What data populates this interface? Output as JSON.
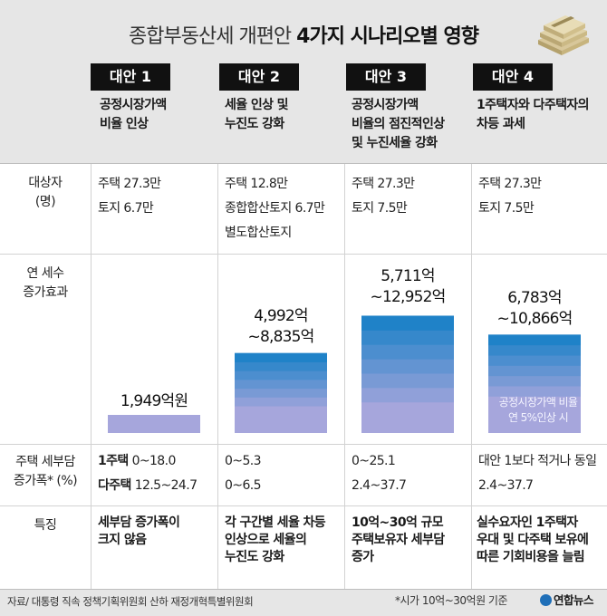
{
  "title_prefix": "종합부동산세 개편안 ",
  "title_bold": "4가지 시나리오별 영향",
  "scenarios": [
    {
      "name": "대안 1",
      "desc": [
        "공정시장가액",
        "비율 인상"
      ]
    },
    {
      "name": "대안 2",
      "desc": [
        "세율 인상 및",
        "누진도 강화"
      ]
    },
    {
      "name": "대안 3",
      "desc": [
        "공정시장가액",
        "비율의 점진적인상",
        "및 누진세율 강화"
      ]
    },
    {
      "name": "대안 4",
      "desc": [
        "1주택자와 다주택자의",
        "차등 과세"
      ]
    }
  ],
  "row_labels": {
    "targets": [
      "대상자",
      "(명)"
    ],
    "revenue": [
      "연 세수",
      "증가효과"
    ],
    "burden": [
      "주택 세부담",
      "증가폭* (%)"
    ],
    "feature": [
      "특징"
    ]
  },
  "targets": [
    [
      "주택 27.3만",
      "토지 6.7만"
    ],
    [
      "주택 12.8만",
      "종합합산토지 6.7만",
      "별도합산토지"
    ],
    [
      "주택 27.3만",
      "토지 7.5만"
    ],
    [
      "주택 27.3만",
      "토지 7.5만"
    ]
  ],
  "burden": [
    {
      "lines": [
        {
          "label": "1주택",
          "value": "0~18.0"
        },
        {
          "label": "다주택",
          "value": "12.5~24.7"
        }
      ]
    },
    {
      "lines": [
        {
          "label": "",
          "value": "0~5.3"
        },
        {
          "label": "",
          "value": "0~6.5"
        }
      ]
    },
    {
      "lines": [
        {
          "label": "",
          "value": "0~25.1"
        },
        {
          "label": "",
          "value": "2.4~37.7"
        }
      ]
    },
    {
      "lines": [
        {
          "label": "",
          "value": "대안 1보다 적거나 동일"
        },
        {
          "label": "",
          "value": "2.4~37.7"
        }
      ]
    }
  ],
  "features": [
    [
      "세부담 증가폭이",
      "크지 않음"
    ],
    [
      "각 구간별 세율 차등",
      "인상으로 세율의",
      "누진도 강화"
    ],
    [
      "10억~30억 규모",
      "주택보유자 세부담",
      "증가"
    ],
    [
      "실수요자인 1주택자",
      "우대 및 다주택 보유에",
      "따른 기회비용을 늘림"
    ]
  ],
  "chart_data": {
    "type": "bar",
    "title": "",
    "ylabel": "연 세수 증가효과",
    "unit": "억원",
    "categories": [
      "대안 1",
      "대안 2",
      "대안 3",
      "대안 4"
    ],
    "series": [
      {
        "values_min": [
          1949,
          4992,
          5711,
          6783
        ],
        "values_max": [
          1949,
          8835,
          12952,
          10866
        ]
      }
    ],
    "ylim": [
      0,
      13000
    ],
    "labels": [
      [
        "1,949억원"
      ],
      [
        "4,992억",
        "~8,835억"
      ],
      [
        "5,711억",
        "~12,952억"
      ],
      [
        "6,783억",
        "~10,866억"
      ]
    ],
    "annotation": [
      "공정시장가액 비율",
      "연 5%인상 시"
    ],
    "colors": {
      "bottom": "#a6a6dc",
      "top": "#1f82c8"
    }
  },
  "footer": {
    "source": "자료/ 대통령 직속 정책기획위원회 산하 재정개혁특별위원회",
    "note": "*시가 10억~30억원 기준",
    "logo": "연합뉴스"
  }
}
